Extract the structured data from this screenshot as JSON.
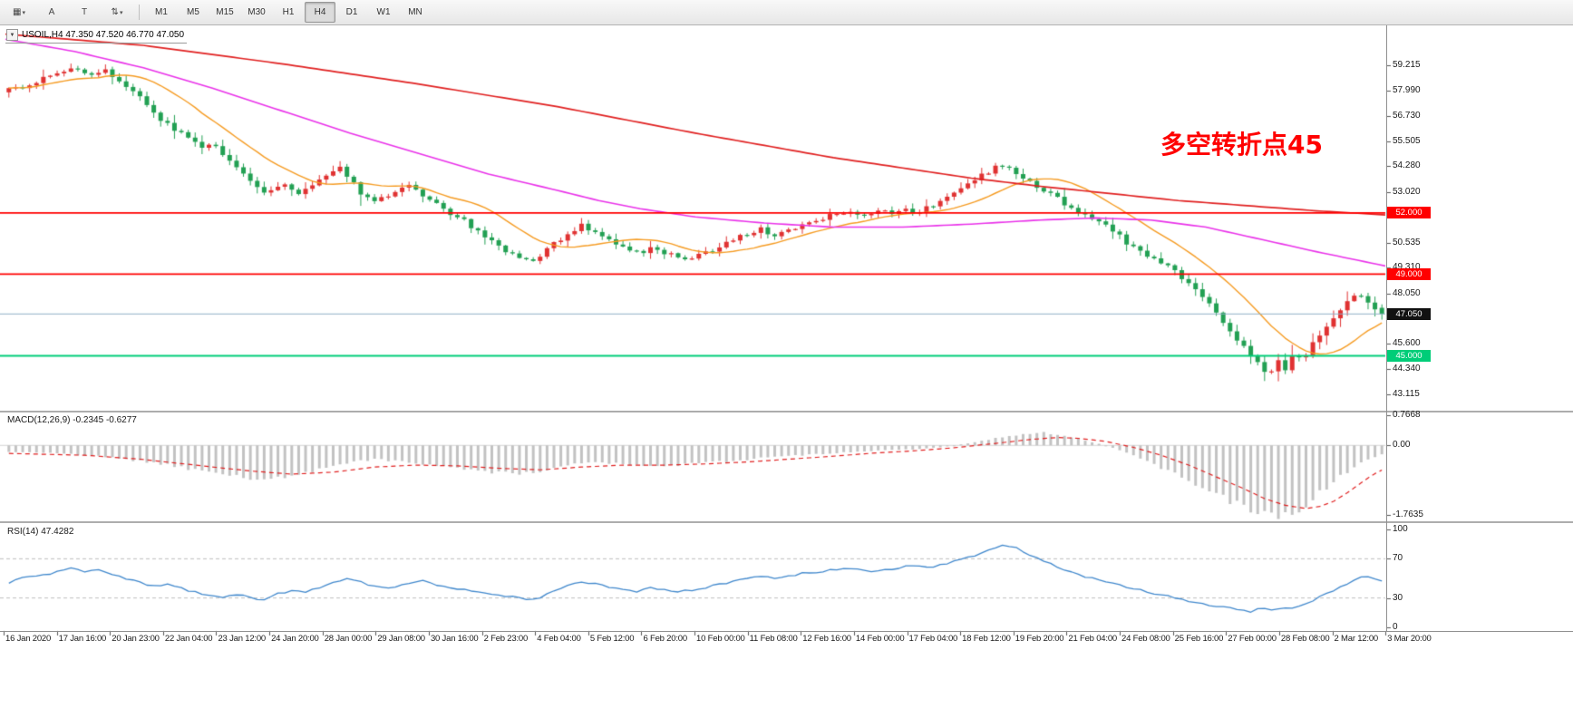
{
  "toolbar": {
    "icon_buttons": [
      {
        "name": "charts-grid-button",
        "glyph": "▦",
        "caret": true
      },
      {
        "name": "cursor-tool-button",
        "glyph": "A",
        "caret": false
      },
      {
        "name": "text-tool-button",
        "glyph": "T",
        "caret": false
      },
      {
        "name": "chart-style-button",
        "glyph": "⇅",
        "caret": true
      }
    ],
    "timeframes": [
      "M1",
      "M5",
      "M15",
      "M30",
      "H1",
      "H4",
      "D1",
      "W1",
      "MN"
    ],
    "active_timeframe": "H4"
  },
  "header": {
    "symbol_line": "USOIL,H4  47.350 47.520 46.770 47.050"
  },
  "annotation": {
    "text": "多空转折点45",
    "color": "#FF0000"
  },
  "panels": {
    "macd_label": "MACD(12,26,9) -0.2345 -0.6277",
    "rsi_label": "RSI(14) 47.4282"
  },
  "axes": {
    "price_ticks": [
      "59.215",
      "57.990",
      "56.730",
      "55.505",
      "54.280",
      "53.020",
      "51.795",
      "50.535",
      "49.310",
      "48.050",
      "46.825",
      "45.600",
      "44.340",
      "43.115"
    ],
    "macd_ticks": [
      {
        "v": 0.7668,
        "label": "0.7668"
      },
      {
        "v": 0,
        "label": "0.00"
      },
      {
        "v": -1.7635,
        "label": "-1.7635"
      }
    ],
    "rsi_ticks": [
      {
        "v": 100,
        "label": "100"
      },
      {
        "v": 70,
        "label": "70"
      },
      {
        "v": 30,
        "label": "30"
      },
      {
        "v": 0,
        "label": "0"
      }
    ],
    "dates": [
      "16 Jan 2020",
      "17 Jan 16:00",
      "20 Jan 23:00",
      "22 Jan 04:00",
      "23 Jan 12:00",
      "24 Jan 20:00",
      "28 Jan 00:00",
      "29 Jan 08:00",
      "30 Jan 16:00",
      "2 Feb 23:00",
      "4 Feb 04:00",
      "5 Feb 12:00",
      "6 Feb 20:00",
      "10 Feb 00:00",
      "11 Feb 08:00",
      "12 Feb 16:00",
      "14 Feb 00:00",
      "17 Feb 04:00",
      "18 Feb 12:00",
      "19 Feb 20:00",
      "21 Feb 04:00",
      "24 Feb 08:00",
      "25 Feb 16:00",
      "27 Feb 00:00",
      "28 Feb 08:00",
      "2 Mar 12:00",
      "3 Mar 20:00"
    ]
  },
  "chart_data": {
    "type": "candlestick",
    "symbol": "USOIL",
    "timeframe": "H4",
    "ohlc": {
      "open": 47.35,
      "high": 47.52,
      "low": 46.77,
      "close": 47.05
    },
    "price_domain": [
      42.36,
      61.0
    ],
    "candle_count": 200,
    "up_color": "#e03232",
    "down_color": "#22a053",
    "price_path": [
      [
        0,
        57.9
      ],
      [
        0.02,
        58.3
      ],
      [
        0.04,
        58.8
      ],
      [
        0.055,
        59.1
      ],
      [
        0.065,
        58.7
      ],
      [
        0.075,
        59.0
      ],
      [
        0.085,
        58.5
      ],
      [
        0.095,
        58.0
      ],
      [
        0.105,
        57.3
      ],
      [
        0.115,
        56.6
      ],
      [
        0.125,
        56.1
      ],
      [
        0.135,
        55.6
      ],
      [
        0.145,
        55.2
      ],
      [
        0.152,
        55.5
      ],
      [
        0.16,
        54.9
      ],
      [
        0.17,
        54.2
      ],
      [
        0.18,
        53.5
      ],
      [
        0.19,
        53.1
      ],
      [
        0.205,
        53.3
      ],
      [
        0.215,
        53.0
      ],
      [
        0.225,
        53.3
      ],
      [
        0.235,
        53.8
      ],
      [
        0.245,
        54.2
      ],
      [
        0.252,
        53.7
      ],
      [
        0.26,
        53.0
      ],
      [
        0.272,
        52.6
      ],
      [
        0.285,
        53.1
      ],
      [
        0.295,
        53.4
      ],
      [
        0.305,
        52.9
      ],
      [
        0.315,
        52.4
      ],
      [
        0.325,
        51.9
      ],
      [
        0.335,
        51.6
      ],
      [
        0.345,
        51.1
      ],
      [
        0.355,
        50.6
      ],
      [
        0.365,
        50.1
      ],
      [
        0.375,
        49.8
      ],
      [
        0.384,
        49.6
      ],
      [
        0.392,
        50.0
      ],
      [
        0.4,
        50.5
      ],
      [
        0.41,
        51.0
      ],
      [
        0.42,
        51.4
      ],
      [
        0.43,
        51.0
      ],
      [
        0.44,
        50.6
      ],
      [
        0.45,
        50.3
      ],
      [
        0.461,
        50.0
      ],
      [
        0.472,
        50.3
      ],
      [
        0.483,
        50.0
      ],
      [
        0.494,
        49.7
      ],
      [
        0.505,
        49.9
      ],
      [
        0.515,
        50.2
      ],
      [
        0.527,
        50.6
      ],
      [
        0.538,
        50.9
      ],
      [
        0.55,
        51.2
      ],
      [
        0.56,
        50.9
      ],
      [
        0.572,
        51.2
      ],
      [
        0.583,
        51.5
      ],
      [
        0.594,
        51.7
      ],
      [
        0.605,
        52.0
      ],
      [
        0.615,
        52.1
      ],
      [
        0.625,
        51.9
      ],
      [
        0.635,
        52.1
      ],
      [
        0.645,
        52.0
      ],
      [
        0.653,
        52.2
      ],
      [
        0.662,
        52.0
      ],
      [
        0.672,
        52.3
      ],
      [
        0.682,
        52.6
      ],
      [
        0.692,
        53.0
      ],
      [
        0.702,
        53.5
      ],
      [
        0.712,
        53.9
      ],
      [
        0.722,
        54.3
      ],
      [
        0.73,
        54.1
      ],
      [
        0.74,
        53.7
      ],
      [
        0.75,
        53.3
      ],
      [
        0.76,
        53.0
      ],
      [
        0.769,
        52.5
      ],
      [
        0.78,
        52.1
      ],
      [
        0.79,
        51.7
      ],
      [
        0.8,
        51.4
      ],
      [
        0.807,
        51.0
      ],
      [
        0.816,
        50.5
      ],
      [
        0.825,
        50.1
      ],
      [
        0.835,
        49.8
      ],
      [
        0.846,
        49.4
      ],
      [
        0.856,
        48.8
      ],
      [
        0.866,
        48.2
      ],
      [
        0.875,
        47.5
      ],
      [
        0.884,
        46.8
      ],
      [
        0.893,
        46.0
      ],
      [
        0.902,
        45.2
      ],
      [
        0.911,
        44.6
      ],
      [
        0.918,
        44.1
      ],
      [
        0.925,
        44.8
      ],
      [
        0.93,
        44.4
      ],
      [
        0.936,
        45.1
      ],
      [
        0.942,
        44.7
      ],
      [
        0.948,
        45.4
      ],
      [
        0.955,
        46.0
      ],
      [
        0.961,
        46.5
      ],
      [
        0.968,
        47.1
      ],
      [
        0.975,
        47.6
      ],
      [
        0.982,
        48.1
      ],
      [
        0.988,
        47.8
      ],
      [
        0.994,
        47.4
      ],
      [
        1,
        47.05
      ]
    ],
    "ma_fast": {
      "period": 14,
      "color": "#f59b22"
    },
    "ma_mid": {
      "color": "#e932e9",
      "path": [
        [
          0,
          60.5
        ],
        [
          0.05,
          59.9
        ],
        [
          0.1,
          59.1
        ],
        [
          0.15,
          58.1
        ],
        [
          0.2,
          57.0
        ],
        [
          0.25,
          55.9
        ],
        [
          0.3,
          54.9
        ],
        [
          0.35,
          53.9
        ],
        [
          0.4,
          53.1
        ],
        [
          0.43,
          52.6
        ],
        [
          0.46,
          52.2
        ],
        [
          0.5,
          51.8
        ],
        [
          0.55,
          51.5
        ],
        [
          0.6,
          51.3
        ],
        [
          0.65,
          51.3
        ],
        [
          0.7,
          51.45
        ],
        [
          0.75,
          51.65
        ],
        [
          0.79,
          51.75
        ],
        [
          0.83,
          51.65
        ],
        [
          0.87,
          51.3
        ],
        [
          0.91,
          50.7
        ],
        [
          0.95,
          50.1
        ],
        [
          1,
          49.4
        ]
      ]
    },
    "ma_slow": {
      "color": "#e02020",
      "path": [
        [
          0,
          60.75
        ],
        [
          0.1,
          60.2
        ],
        [
          0.2,
          59.3
        ],
        [
          0.3,
          58.3
        ],
        [
          0.4,
          57.2
        ],
        [
          0.5,
          55.9
        ],
        [
          0.55,
          55.3
        ],
        [
          0.6,
          54.7
        ],
        [
          0.65,
          54.2
        ],
        [
          0.7,
          53.7
        ],
        [
          0.75,
          53.3
        ],
        [
          0.8,
          52.95
        ],
        [
          0.85,
          52.6
        ],
        [
          0.9,
          52.35
        ],
        [
          0.95,
          52.1
        ],
        [
          1,
          51.9
        ]
      ]
    },
    "hlines": [
      {
        "price": 52.0,
        "label": "52.000",
        "color": "#ff0000"
      },
      {
        "price": 49.0,
        "label": "49.000",
        "color": "#ff0000"
      },
      {
        "price": 45.0,
        "label": "45.000",
        "color": "#00cd78"
      }
    ],
    "current_price": {
      "value": 47.05,
      "label": "47.050",
      "line_color": "#8fb0c6",
      "badge_bg": "#111111"
    },
    "macd": {
      "hist_color": "#c2c2c2",
      "signal_color": "#e02020",
      "hist_path": [
        [
          0,
          -0.15
        ],
        [
          0.04,
          -0.2
        ],
        [
          0.08,
          -0.3
        ],
        [
          0.12,
          -0.5
        ],
        [
          0.16,
          -0.75
        ],
        [
          0.19,
          -0.88
        ],
        [
          0.22,
          -0.7
        ],
        [
          0.25,
          -0.45
        ],
        [
          0.27,
          -0.35
        ],
        [
          0.3,
          -0.45
        ],
        [
          0.33,
          -0.6
        ],
        [
          0.36,
          -0.7
        ],
        [
          0.384,
          -0.72
        ],
        [
          0.41,
          -0.5
        ],
        [
          0.43,
          -0.42
        ],
        [
          0.45,
          -0.48
        ],
        [
          0.47,
          -0.52
        ],
        [
          0.49,
          -0.5
        ],
        [
          0.52,
          -0.42
        ],
        [
          0.55,
          -0.32
        ],
        [
          0.58,
          -0.25
        ],
        [
          0.61,
          -0.18
        ],
        [
          0.64,
          -0.12
        ],
        [
          0.66,
          -0.1
        ],
        [
          0.68,
          -0.05
        ],
        [
          0.7,
          0.05
        ],
        [
          0.72,
          0.18
        ],
        [
          0.74,
          0.28
        ],
        [
          0.755,
          0.32
        ],
        [
          0.77,
          0.25
        ],
        [
          0.785,
          0.12
        ],
        [
          0.8,
          0.0
        ],
        [
          0.815,
          -0.18
        ],
        [
          0.83,
          -0.42
        ],
        [
          0.845,
          -0.65
        ],
        [
          0.86,
          -0.9
        ],
        [
          0.875,
          -1.15
        ],
        [
          0.89,
          -1.4
        ],
        [
          0.905,
          -1.6
        ],
        [
          0.92,
          -1.74
        ],
        [
          0.93,
          -1.76
        ],
        [
          0.94,
          -1.6
        ],
        [
          0.95,
          -1.35
        ],
        [
          0.96,
          -1.05
        ],
        [
          0.97,
          -0.78
        ],
        [
          0.98,
          -0.55
        ],
        [
          0.99,
          -0.35
        ],
        [
          1,
          -0.2345
        ]
      ],
      "signal_path": [
        [
          0,
          -0.2
        ],
        [
          0.06,
          -0.25
        ],
        [
          0.1,
          -0.35
        ],
        [
          0.14,
          -0.5
        ],
        [
          0.18,
          -0.65
        ],
        [
          0.21,
          -0.73
        ],
        [
          0.24,
          -0.68
        ],
        [
          0.27,
          -0.55
        ],
        [
          0.3,
          -0.5
        ],
        [
          0.33,
          -0.52
        ],
        [
          0.36,
          -0.58
        ],
        [
          0.39,
          -0.62
        ],
        [
          0.42,
          -0.55
        ],
        [
          0.45,
          -0.5
        ],
        [
          0.48,
          -0.5
        ],
        [
          0.51,
          -0.47
        ],
        [
          0.54,
          -0.42
        ],
        [
          0.57,
          -0.35
        ],
        [
          0.6,
          -0.28
        ],
        [
          0.63,
          -0.2
        ],
        [
          0.66,
          -0.14
        ],
        [
          0.69,
          -0.06
        ],
        [
          0.72,
          0.05
        ],
        [
          0.745,
          0.15
        ],
        [
          0.765,
          0.2
        ],
        [
          0.78,
          0.18
        ],
        [
          0.8,
          0.1
        ],
        [
          0.82,
          -0.05
        ],
        [
          0.84,
          -0.25
        ],
        [
          0.86,
          -0.5
        ],
        [
          0.88,
          -0.8
        ],
        [
          0.9,
          -1.1
        ],
        [
          0.915,
          -1.35
        ],
        [
          0.93,
          -1.52
        ],
        [
          0.945,
          -1.6
        ],
        [
          0.955,
          -1.55
        ],
        [
          0.965,
          -1.42
        ],
        [
          0.975,
          -1.2
        ],
        [
          0.985,
          -0.95
        ],
        [
          0.993,
          -0.75
        ],
        [
          1,
          -0.6277
        ]
      ]
    },
    "rsi": {
      "line_color": "#3f87cc",
      "levels": [
        70,
        30
      ],
      "path": [
        [
          0,
          44
        ],
        [
          0.01,
          48
        ],
        [
          0.02,
          52
        ],
        [
          0.035,
          55
        ],
        [
          0.05,
          60
        ],
        [
          0.06,
          57
        ],
        [
          0.07,
          59
        ],
        [
          0.08,
          54
        ],
        [
          0.09,
          50
        ],
        [
          0.1,
          46
        ],
        [
          0.11,
          42
        ],
        [
          0.12,
          44
        ],
        [
          0.13,
          40
        ],
        [
          0.14,
          36
        ],
        [
          0.15,
          33
        ],
        [
          0.16,
          30
        ],
        [
          0.17,
          34
        ],
        [
          0.18,
          30
        ],
        [
          0.19,
          28
        ],
        [
          0.2,
          34
        ],
        [
          0.21,
          38
        ],
        [
          0.22,
          36
        ],
        [
          0.23,
          41
        ],
        [
          0.24,
          46
        ],
        [
          0.25,
          50
        ],
        [
          0.26,
          46
        ],
        [
          0.27,
          42
        ],
        [
          0.285,
          40
        ],
        [
          0.295,
          45
        ],
        [
          0.305,
          48
        ],
        [
          0.315,
          43
        ],
        [
          0.325,
          40
        ],
        [
          0.335,
          38
        ],
        [
          0.345,
          36
        ],
        [
          0.355,
          34
        ],
        [
          0.365,
          32
        ],
        [
          0.375,
          30
        ],
        [
          0.385,
          28
        ],
        [
          0.395,
          34
        ],
        [
          0.405,
          40
        ],
        [
          0.42,
          47
        ],
        [
          0.43,
          44
        ],
        [
          0.44,
          41
        ],
        [
          0.45,
          39
        ],
        [
          0.46,
          37
        ],
        [
          0.47,
          40
        ],
        [
          0.48,
          38
        ],
        [
          0.49,
          36
        ],
        [
          0.5,
          38
        ],
        [
          0.51,
          41
        ],
        [
          0.52,
          44
        ],
        [
          0.53,
          47
        ],
        [
          0.54,
          50
        ],
        [
          0.55,
          53
        ],
        [
          0.56,
          50
        ],
        [
          0.57,
          52
        ],
        [
          0.58,
          55
        ],
        [
          0.59,
          56
        ],
        [
          0.6,
          58
        ],
        [
          0.61,
          59
        ],
        [
          0.62,
          60
        ],
        [
          0.63,
          57
        ],
        [
          0.64,
          59
        ],
        [
          0.65,
          61
        ],
        [
          0.66,
          63
        ],
        [
          0.67,
          61
        ],
        [
          0.68,
          64
        ],
        [
          0.69,
          67
        ],
        [
          0.7,
          71
        ],
        [
          0.71,
          76
        ],
        [
          0.72,
          81
        ],
        [
          0.727,
          85
        ],
        [
          0.735,
          81
        ],
        [
          0.745,
          74
        ],
        [
          0.755,
          68
        ],
        [
          0.765,
          61
        ],
        [
          0.775,
          56
        ],
        [
          0.785,
          52
        ],
        [
          0.795,
          49
        ],
        [
          0.805,
          45
        ],
        [
          0.815,
          41
        ],
        [
          0.825,
          38
        ],
        [
          0.835,
          35
        ],
        [
          0.845,
          32
        ],
        [
          0.855,
          28
        ],
        [
          0.865,
          25
        ],
        [
          0.875,
          23
        ],
        [
          0.885,
          21
        ],
        [
          0.895,
          18
        ],
        [
          0.905,
          16
        ],
        [
          0.912,
          19
        ],
        [
          0.92,
          17
        ],
        [
          0.928,
          21
        ],
        [
          0.935,
          19
        ],
        [
          0.945,
          24
        ],
        [
          0.955,
          31
        ],
        [
          0.965,
          38
        ],
        [
          0.975,
          44
        ],
        [
          0.982,
          50
        ],
        [
          0.988,
          53
        ],
        [
          0.993,
          49
        ],
        [
          1,
          47.43
        ]
      ]
    }
  }
}
